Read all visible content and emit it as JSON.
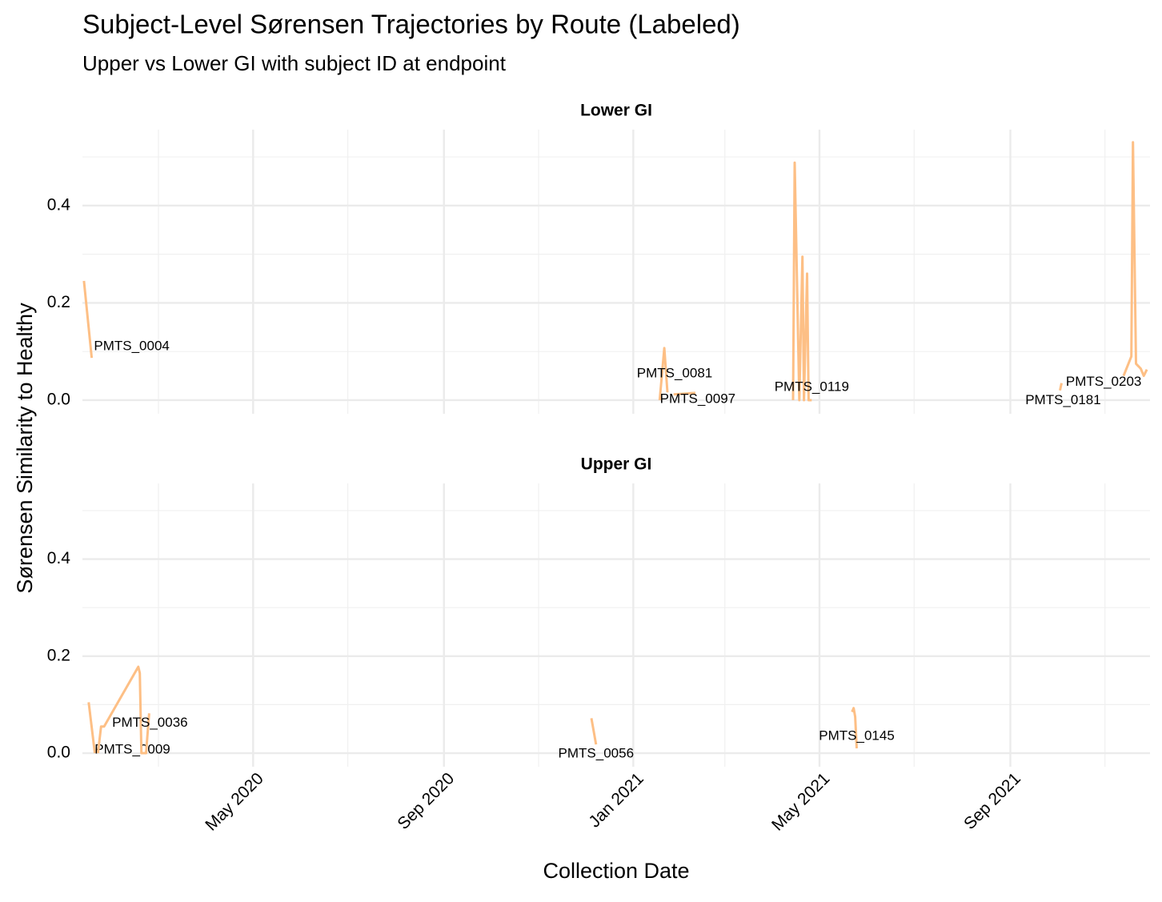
{
  "chart_data": {
    "type": "line",
    "title": "Subject-Level Sørensen Trajectories by Route (Labeled)",
    "subtitle": "Upper vs Lower GI with subject ID at endpoint",
    "xlabel": "Collection Date",
    "ylabel": "Sørensen Similarity to Healthy",
    "color": "#fdbf85",
    "grid": true,
    "xlim": [
      "2020-01-12",
      "2021-11-30"
    ],
    "xticks": [
      {
        "value": "2020-05-01",
        "label": "May 2020"
      },
      {
        "value": "2020-09-01",
        "label": "Sep 2020"
      },
      {
        "value": "2021-01-01",
        "label": "Jan 2021"
      },
      {
        "value": "2021-05-01",
        "label": "May 2021"
      },
      {
        "value": "2021-09-01",
        "label": "Sep 2021"
      }
    ],
    "xminor": [
      "2020-03-01",
      "2020-07-01",
      "2020-11-01",
      "2021-03-01",
      "2021-07-01",
      "2021-11-01"
    ],
    "ylim": [
      -0.028,
      0.556
    ],
    "yticks": [
      {
        "value": 0,
        "label": "0.0"
      },
      0.2,
      0.4
    ],
    "yminor": [
      0.1,
      0.3,
      0.5
    ],
    "panels": [
      {
        "title": "Lower GI",
        "series": [
          {
            "name": "PMTS_0004",
            "x": [
              "2020-01-13",
              "2020-01-18"
            ],
            "values": [
              0.245,
              0.087
            ]
          },
          {
            "name": "PMTS_0081",
            "x": [
              "2021-01-18",
              "2021-01-21",
              "2021-01-23"
            ],
            "values": [
              0.0,
              0.107,
              0.016
            ]
          },
          {
            "name": "PMTS_0097",
            "x": [
              "2021-01-27",
              "2021-02-10"
            ],
            "values": [
              0.012,
              0.015
            ]
          },
          {
            "name": "PMTS_0119",
            "x": [
              "2021-04-14",
              "2021-04-15",
              "2021-04-18",
              "2021-04-20",
              "2021-04-21",
              "2021-04-23",
              "2021-04-24",
              "2021-04-26"
            ],
            "values": [
              0.0,
              0.488,
              0.0,
              0.295,
              0.0,
              0.26,
              0.0,
              0.0
            ]
          },
          {
            "name": "PMTS_0181",
            "x": [
              "2021-10-03",
              "2021-10-04"
            ],
            "values": [
              0.02,
              0.035
            ]
          },
          {
            "name": "PMTS_0203",
            "x": [
              "2021-11-13",
              "2021-11-18",
              "2021-11-19",
              "2021-11-21",
              "2021-11-24",
              "2021-11-26",
              "2021-11-28"
            ],
            "values": [
              0.05,
              0.09,
              0.53,
              0.075,
              0.065,
              0.05,
              0.063
            ]
          }
        ]
      },
      {
        "title": "Upper GI",
        "series": [
          {
            "name": "PMTS_0009",
            "x": [
              "2020-01-16",
              "2020-01-20"
            ],
            "values": [
              0.105,
              0.0
            ]
          },
          {
            "name": "PMTS_0036",
            "x": [
              "2020-01-22",
              "2020-01-24",
              "2020-01-26",
              "2020-02-17",
              "2020-02-18",
              "2020-02-19",
              "2020-02-22",
              "2020-02-24"
            ],
            "values": [
              0.0,
              0.055,
              0.055,
              0.178,
              0.165,
              0.0,
              0.0,
              0.082
            ]
          },
          {
            "name": "PMTS_0056",
            "x": [
              "2020-12-05",
              "2020-12-08"
            ],
            "values": [
              0.072,
              0.018
            ]
          },
          {
            "name": "PMTS_0145",
            "x": [
              "2021-05-22",
              "2021-05-23",
              "2021-05-24",
              "2021-05-25"
            ],
            "values": [
              0.085,
              0.093,
              0.075,
              0.01
            ]
          }
        ]
      }
    ]
  }
}
